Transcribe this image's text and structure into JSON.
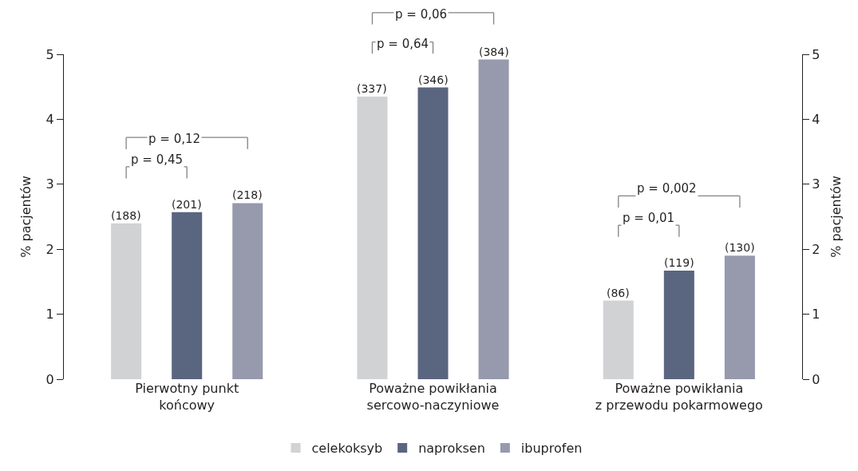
{
  "chart_data": {
    "type": "bar",
    "categories": [
      "Pierwotny punkt\nkońcowy",
      "Poważne powikłania\nsercowo-naczyniowe",
      "Poważne powikłania\nz przewodu pokarmowego"
    ],
    "ylabel": "% pacjentów",
    "y2label": "% pacjentów",
    "ylim": [
      0,
      5
    ],
    "yticks": [
      0,
      1,
      2,
      3,
      4,
      5
    ],
    "y2lim": [
      0,
      5
    ],
    "y2ticks": [
      0,
      1,
      2,
      3,
      4,
      5
    ],
    "series": [
      {
        "name": "celekoksyb",
        "color": "#d1d2d4",
        "values": [
          2.4,
          4.35,
          1.21
        ]
      },
      {
        "name": "naproksen",
        "color": "#5a6580",
        "values": [
          2.57,
          4.49,
          1.67
        ]
      },
      {
        "name": "ibuprofen",
        "color": "#979aad",
        "values": [
          2.71,
          4.92,
          1.9
        ]
      }
    ],
    "annotations": [
      "p = 0,12",
      "p = 0,45",
      "p = 0,06",
      "p = 0,64",
      "p = 0,002",
      "p = 0,01",
      "(188)",
      "(201)",
      "(218)",
      "(337)",
      "(346)",
      "(384)",
      "(86)",
      "(119)",
      "(130)"
    ],
    "legend": "bottom"
  }
}
